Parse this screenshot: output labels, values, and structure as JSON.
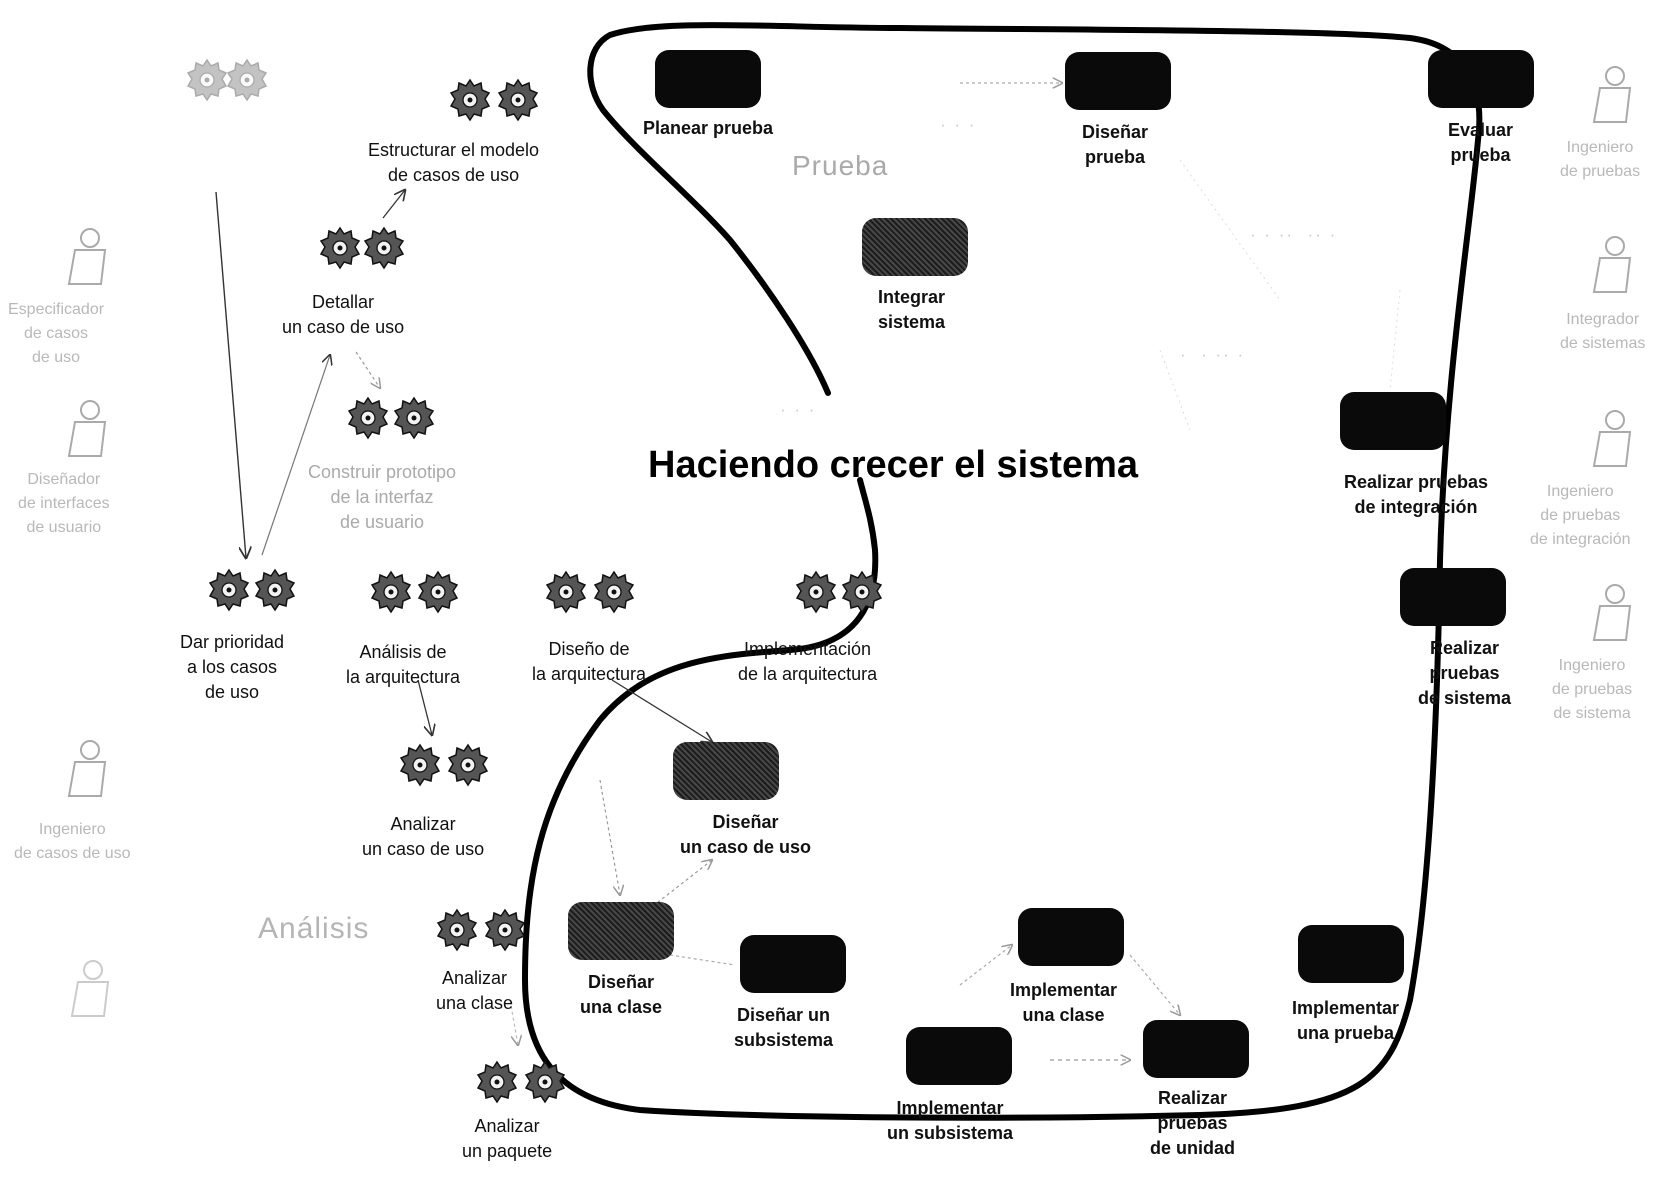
{
  "title": "Haciendo crecer el sistema",
  "sections": {
    "prueba": "Prueba",
    "analisis": "Análisis"
  },
  "actors": {
    "especificador": "Especificador\nde casos\nde uso",
    "disenador": "Diseñador\nde interfaces\nde usuario",
    "ingeniero_casos": "Ingeniero\nde casos de uso",
    "ingeniero_pruebas": "Ingeniero\nde pruebas",
    "integrador": "Integrador\nde sistemas",
    "ingeniero_integracion": "Ingeniero\nde pruebas\nde integración",
    "ingeniero_sistema": "Ingeniero\nde pruebas\nde sistema"
  },
  "activities": {
    "estructurar": "Estructurar el modelo\nde casos de uso",
    "detallar": "Detallar\nun caso de uso",
    "prototipo": "Construir prototipo\nde la interfaz\nde usuario",
    "priorizar": "Dar prioridad\na los casos\nde uso",
    "analisis_arq": "Análisis de\nla arquitectura",
    "diseno_arq": "Diseño de\nla arquitectura",
    "implementacion_arq": "Implementación\nde la arquitectura",
    "analizar_caso": "Analizar\nun caso de uso",
    "disenar_caso": "Diseñar\nun caso de uso",
    "analizar_clase": "Analizar\nuna clase",
    "disenar_clase": "Diseñar\nuna clase",
    "disenar_subsistema": "Diseñar un\nsubsistema",
    "analizar_paquete": "Analizar\nun paquete",
    "implementar_clase": "Implementar\nuna clase",
    "implementar_subsistema": "Implementar\nun subsistema",
    "pruebas_unidad": "Realizar\npruebas\nde unidad",
    "implementar_prueba": "Implementar\nuna prueba",
    "planear_prueba": "Planear prueba",
    "disenar_prueba": "Diseñar\nprueba",
    "evaluar_prueba": "Evaluar\nprueba",
    "integrar_sistema": "Integrar\nsistema",
    "pruebas_integracion": "Realizar pruebas\nde integración",
    "pruebas_sistema": "Realizar\npruebas\nde sistema"
  },
  "icons": {
    "gear": "gear-pair-icon",
    "actor": "stick-figure-icon",
    "box": "activity-box"
  }
}
